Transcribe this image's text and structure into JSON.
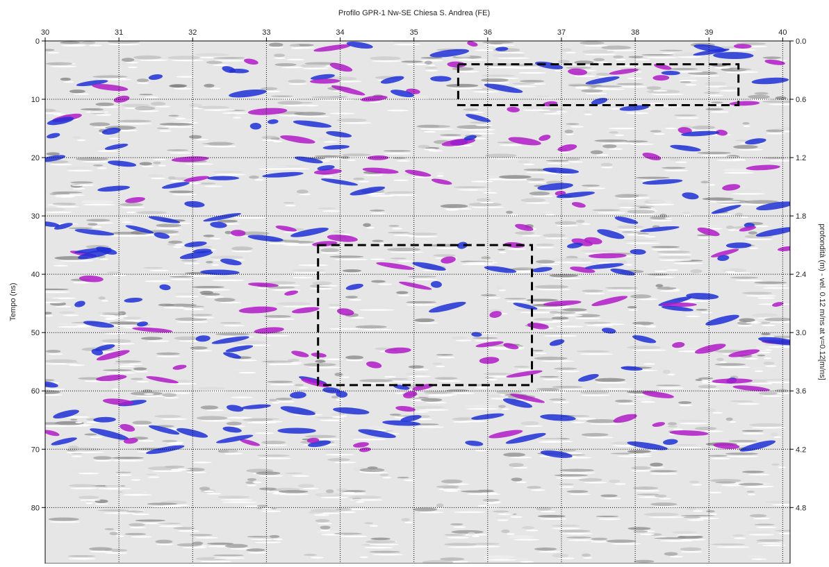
{
  "chart_data": {
    "type": "radargram",
    "title": "Profilo GPR-1 Nw-SE Chiesa S. Andrea (FE)",
    "y_label": "Tempo (ns)",
    "y2_label": "profondità (m) - vel. 0.12 m/ns at v=0.12[m/ns]",
    "xlim": [
      30,
      40.1
    ],
    "xticks": [
      30,
      31,
      32,
      33,
      34,
      35,
      36,
      37,
      38,
      39,
      40
    ],
    "ylim": [
      0,
      89.6
    ],
    "yticks": [
      0,
      10,
      20,
      30,
      40,
      50,
      60,
      70,
      80
    ],
    "y2lim": [
      0,
      5.376
    ],
    "y2ticks": [
      {
        "value": 0,
        "label": "0.0"
      },
      0.6,
      1.2,
      1.8,
      2.4,
      {
        "value": 3,
        "label": "3.0"
      },
      3.6,
      4.2,
      4.8
    ],
    "grid": true,
    "boxes": [
      {
        "x": [
          35.6,
          39.4
        ],
        "y": [
          4,
          11
        ]
      },
      {
        "x": [
          33.7,
          36.6
        ],
        "y": [
          35,
          59
        ]
      }
    ]
  }
}
